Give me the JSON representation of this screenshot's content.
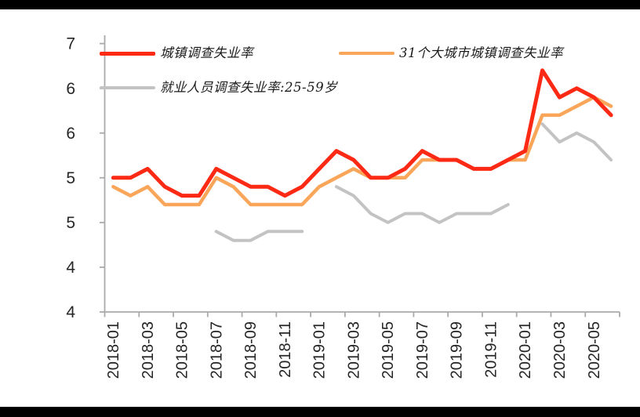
{
  "chart_data": {
    "type": "line",
    "title": "",
    "categories": [
      "2018-01",
      "2018-02",
      "2018-03",
      "2018-04",
      "2018-05",
      "2018-06",
      "2018-07",
      "2018-08",
      "2018-09",
      "2018-10",
      "2018-11",
      "2018-12",
      "2019-01",
      "2019-02",
      "2019-03",
      "2019-04",
      "2019-05",
      "2019-06",
      "2019-07",
      "2019-08",
      "2019-09",
      "2019-10",
      "2019-11",
      "2019-12",
      "2020-01",
      "2020-02",
      "2020-03",
      "2020-04",
      "2020-05",
      "2020-06"
    ],
    "x_tick_labels": [
      "2018-01",
      "2018-03",
      "2018-05",
      "2018-07",
      "2018-09",
      "2018-11",
      "2019-01",
      "2019-03",
      "2019-05",
      "2019-07",
      "2019-09",
      "2019-11",
      "2020-01",
      "2020-03",
      "2020-05"
    ],
    "y_axis": {
      "min": 3.5,
      "max": 6.5,
      "step": 0.5,
      "tick_labels_top_to_bottom": [
        "7",
        "6",
        "6",
        "5",
        "5",
        "4",
        "4"
      ]
    },
    "grid": "off",
    "legend_position": "top-left-inside",
    "series": [
      {
        "name": "城镇调查失业率",
        "color": "#fc2a15",
        "line_width": 5,
        "values": [
          5.0,
          5.0,
          5.1,
          4.9,
          4.8,
          4.8,
          5.1,
          5.0,
          4.9,
          4.9,
          4.8,
          4.9,
          5.1,
          5.3,
          5.2,
          5.0,
          5.0,
          5.1,
          5.3,
          5.2,
          5.2,
          5.1,
          5.1,
          5.2,
          5.3,
          6.2,
          5.9,
          6.0,
          5.9,
          5.7
        ]
      },
      {
        "name": "31个大城市城镇调查失业率",
        "color": "#f9a65b",
        "line_width": 4.5,
        "values": [
          4.9,
          4.8,
          4.9,
          4.7,
          4.7,
          4.7,
          5.0,
          4.9,
          4.7,
          4.7,
          4.7,
          4.7,
          4.9,
          5.0,
          5.1,
          5.0,
          5.0,
          5.0,
          5.2,
          5.2,
          5.2,
          5.1,
          5.1,
          5.2,
          5.2,
          5.7,
          5.7,
          5.8,
          5.9,
          5.8
        ]
      },
      {
        "name": "就业人员调查失业率:25-59岁",
        "color": "#c3c3c3",
        "line_width": 4,
        "values": [
          null,
          null,
          null,
          null,
          null,
          null,
          4.4,
          4.3,
          4.3,
          4.4,
          4.4,
          4.4,
          null,
          4.9,
          4.8,
          4.6,
          4.5,
          4.6,
          4.6,
          4.5,
          4.6,
          4.6,
          4.6,
          4.7,
          null,
          5.6,
          5.4,
          5.5,
          5.4,
          5.2
        ]
      }
    ],
    "colors": {
      "axis_line": "#aaaaaa",
      "tick_label": "#262626",
      "frame_border": "#000000"
    }
  }
}
